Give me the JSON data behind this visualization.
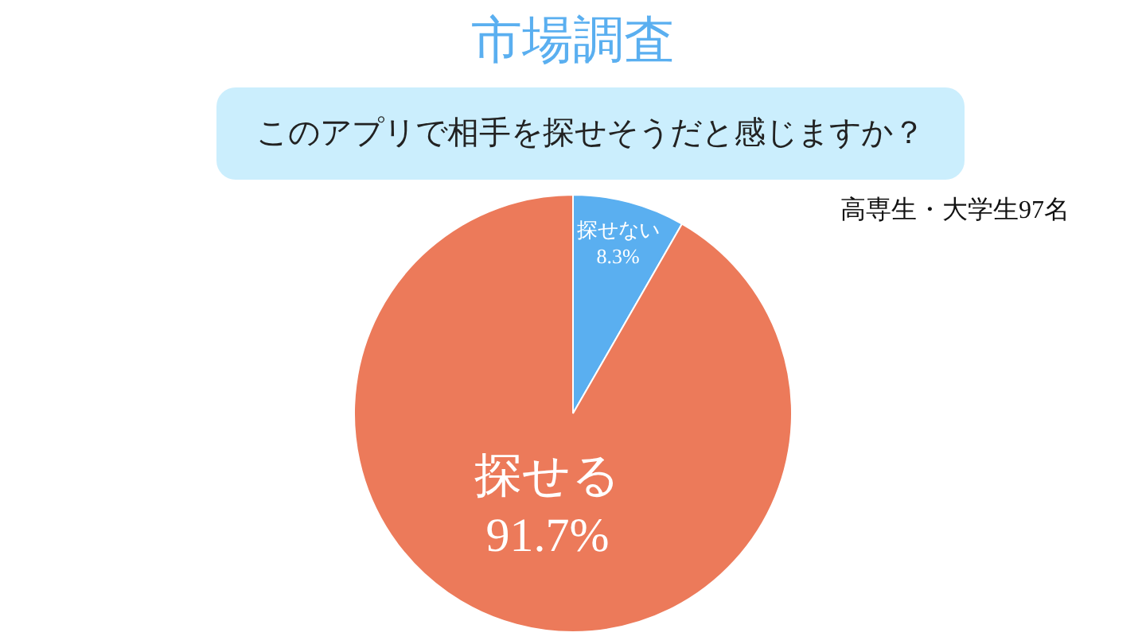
{
  "chart_data": {
    "type": "pie",
    "title": "市場調査",
    "subtitle": "このアプリで相手を探せそうだと感じますか？",
    "annotations": [
      "高専生・大学生97名"
    ],
    "categories": [
      "探せない",
      "探せる"
    ],
    "values": [
      8.3,
      91.7
    ],
    "value_labels": [
      "8.3%",
      "91.7%"
    ],
    "colors": [
      "#5aaff0",
      "#ec7a5a"
    ],
    "legend": false
  }
}
